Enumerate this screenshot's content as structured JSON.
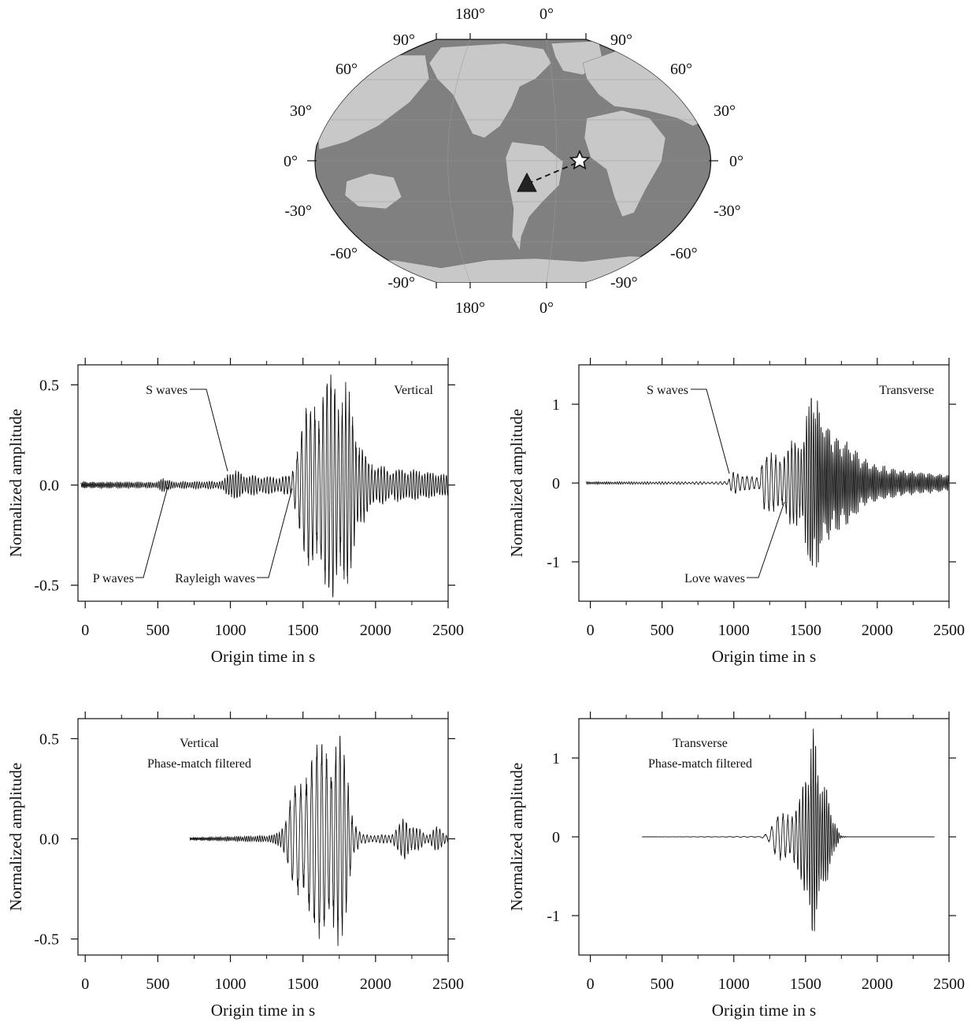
{
  "map": {
    "lon_labels_top": [
      "180°",
      "0°"
    ],
    "lon_labels_bottom": [
      "180°",
      "0°"
    ],
    "lat_labels": [
      "90°",
      "60°",
      "30°",
      "0°",
      "-30°",
      "-60°",
      "-90°"
    ],
    "markers": [
      {
        "name": "station",
        "symbol": "triangle"
      },
      {
        "name": "epicenter",
        "symbol": "star"
      }
    ],
    "colors": {
      "ocean": "#808080",
      "land": "#c8c8c8",
      "outline": "#111111"
    }
  },
  "chart_data": [
    {
      "type": "line",
      "panel": "Vertical",
      "title": "Vertical",
      "xlabel": "Origin time in s",
      "ylabel": "Normalized amplitude",
      "xlim": [
        -50,
        2500
      ],
      "ylim": [
        -0.58,
        0.6
      ],
      "xticks": [
        "0",
        "500",
        "1000",
        "1500",
        "2000",
        "2500"
      ],
      "yticks": [
        "0.5",
        "0.0",
        "-0.5"
      ],
      "ytick_values": [
        0.5,
        0.0,
        -0.5
      ],
      "x_start": -30,
      "x_end": 2500,
      "peak_amplitude": 0.55,
      "annotations": [
        "S waves",
        "P waves",
        "Rayleigh waves"
      ],
      "series": [
        {
          "envelope": [
            [
              -30,
              0.015
            ],
            [
              500,
              0.015
            ],
            [
              540,
              0.04
            ],
            [
              600,
              0.015
            ],
            [
              950,
              0.02
            ],
            [
              1000,
              0.08
            ],
            [
              1100,
              0.05
            ],
            [
              1350,
              0.04
            ],
            [
              1420,
              0.05
            ],
            [
              1450,
              0.2
            ],
            [
              1500,
              0.32
            ],
            [
              1600,
              0.46
            ],
            [
              1720,
              0.55
            ],
            [
              1800,
              0.5
            ],
            [
              1860,
              0.3
            ],
            [
              1950,
              0.12
            ],
            [
              2100,
              0.08
            ],
            [
              2250,
              0.08
            ],
            [
              2500,
              0.05
            ]
          ],
          "period_profile": [
            [
              0,
              10
            ],
            [
              1400,
              22
            ],
            [
              1450,
              32
            ],
            [
              1900,
              22
            ],
            [
              2500,
              18
            ]
          ]
        }
      ]
    },
    {
      "type": "line",
      "panel": "Transverse",
      "title": "Transverse",
      "xlabel": "Origin time in s",
      "ylabel": "Normalized amplitude",
      "xlim": [
        -80,
        2500
      ],
      "ylim": [
        -1.5,
        1.5
      ],
      "xticks": [
        "0",
        "500",
        "1000",
        "1500",
        "2000",
        "2500"
      ],
      "yticks": [
        "1",
        "0",
        "-1"
      ],
      "ytick_values": [
        1,
        0,
        -1
      ],
      "x_start": -30,
      "x_end": 2500,
      "peak_amplitude": 1.4,
      "annotations": [
        "S waves",
        "Love waves"
      ],
      "series": [
        {
          "envelope": [
            [
              -30,
              0.015
            ],
            [
              900,
              0.015
            ],
            [
              960,
              0.02
            ],
            [
              990,
              0.2
            ],
            [
              1050,
              0.08
            ],
            [
              1180,
              0.1
            ],
            [
              1200,
              0.35
            ],
            [
              1300,
              0.35
            ],
            [
              1400,
              0.5
            ],
            [
              1480,
              0.6
            ],
            [
              1520,
              0.9
            ],
            [
              1550,
              1.4
            ],
            [
              1600,
              0.85
            ],
            [
              1700,
              0.6
            ],
            [
              1800,
              0.5
            ],
            [
              1900,
              0.3
            ],
            [
              2000,
              0.22
            ],
            [
              2200,
              0.15
            ],
            [
              2500,
              0.1
            ]
          ],
          "period_profile": [
            [
              0,
              12
            ],
            [
              1200,
              35
            ],
            [
              1350,
              28
            ],
            [
              1500,
              18
            ],
            [
              1600,
              12
            ],
            [
              2500,
              12
            ]
          ]
        }
      ]
    },
    {
      "type": "line",
      "panel": "Vertical phase-match filtered",
      "title": "Vertical\nPhase-match filtered",
      "xlabel": "Origin time in s",
      "ylabel": "Normalized amplitude",
      "xlim": [
        -50,
        2500
      ],
      "ylim": [
        -0.58,
        0.6
      ],
      "xticks": [
        "0",
        "500",
        "1000",
        "1500",
        "2000",
        "2500"
      ],
      "yticks": [
        "0.5",
        "0.0",
        "-0.5"
      ],
      "ytick_values": [
        0.5,
        0.0,
        -0.5
      ],
      "x_start": 720,
      "x_end": 2500,
      "peak_amplitude": 0.52,
      "annotations": [],
      "series": [
        {
          "envelope": [
            [
              720,
              0.006
            ],
            [
              1200,
              0.015
            ],
            [
              1300,
              0.02
            ],
            [
              1340,
              0.05
            ],
            [
              1380,
              0.08
            ],
            [
              1450,
              0.3
            ],
            [
              1550,
              0.4
            ],
            [
              1650,
              0.5
            ],
            [
              1750,
              0.52
            ],
            [
              1800,
              0.35
            ],
            [
              1850,
              0.1
            ],
            [
              1900,
              0.02
            ],
            [
              2100,
              0.02
            ],
            [
              2200,
              0.1
            ],
            [
              2300,
              0.05
            ],
            [
              2350,
              0.02
            ],
            [
              2420,
              0.06
            ],
            [
              2500,
              0.02
            ]
          ],
          "period_profile": [
            [
              720,
              8
            ],
            [
              1340,
              18
            ],
            [
              1450,
              40
            ],
            [
              1850,
              26
            ],
            [
              2500,
              22
            ]
          ]
        }
      ]
    },
    {
      "type": "line",
      "panel": "Transverse phase-match filtered",
      "title": "Transverse\nPhase-match filtered",
      "xlabel": "Origin time in s",
      "ylabel": "Normalized amplitude",
      "xlim": [
        -80,
        2500
      ],
      "ylim": [
        -1.5,
        1.5
      ],
      "xticks": [
        "0",
        "500",
        "1000",
        "1500",
        "2000",
        "2500"
      ],
      "yticks": [
        "1",
        "0",
        "-1"
      ],
      "ytick_values": [
        1,
        0,
        -1
      ],
      "x_start": 360,
      "x_end": 2400,
      "peak_amplitude": 1.3,
      "annotations": [],
      "series": [
        {
          "envelope": [
            [
              360,
              0.0
            ],
            [
              1180,
              0.005
            ],
            [
              1240,
              0.05
            ],
            [
              1300,
              0.25
            ],
            [
              1380,
              0.35
            ],
            [
              1450,
              0.4
            ],
            [
              1520,
              1.0
            ],
            [
              1550,
              1.3
            ],
            [
              1600,
              0.8
            ],
            [
              1660,
              0.5
            ],
            [
              1700,
              0.2
            ],
            [
              1740,
              0.02
            ],
            [
              1800,
              0.0
            ],
            [
              2400,
              0.0
            ]
          ],
          "period_profile": [
            [
              1180,
              50
            ],
            [
              1300,
              40
            ],
            [
              1450,
              24
            ],
            [
              1550,
              16
            ],
            [
              1740,
              14
            ]
          ]
        }
      ]
    }
  ]
}
